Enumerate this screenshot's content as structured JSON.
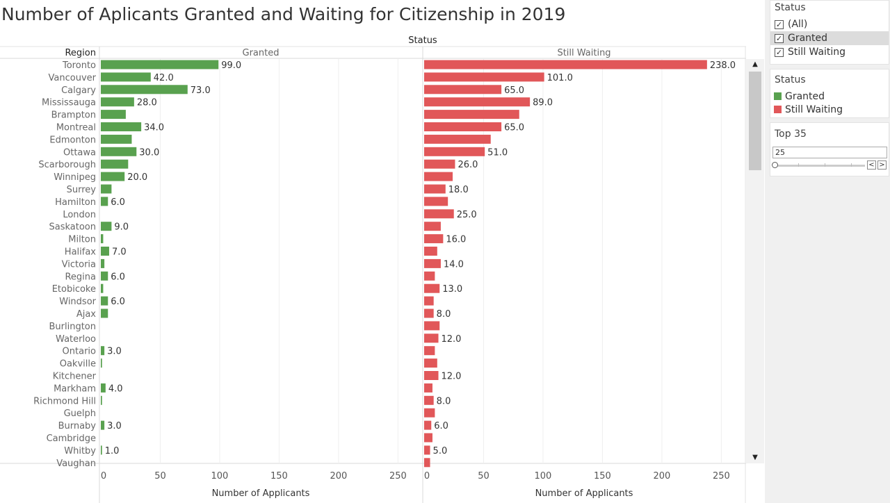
{
  "title": "Number of Aplicants Granted and  Waiting for Citizenship in 2019",
  "chart_data": {
    "type": "bar",
    "orientation": "horizontal",
    "title": "Number of Aplicants Granted and  Waiting for Citizenship in 2019",
    "column_header": "Status",
    "row_header": "Region",
    "xlabel": "Number of Applicants",
    "xlim": [
      0,
      265
    ],
    "xticks": [
      0,
      50,
      100,
      150,
      200,
      250
    ],
    "grid": true,
    "categories": [
      "Toronto",
      "Vancouver",
      "Calgary",
      "Mississauga",
      "Brampton",
      "Montreal",
      "Edmonton",
      "Ottawa",
      "Scarborough",
      "Winnipeg",
      "Surrey",
      "Hamilton",
      "London",
      "Saskatoon",
      "Milton",
      "Halifax",
      "Victoria",
      "Regina",
      "Etobicoke",
      "Windsor",
      "Ajax",
      "Burlington",
      "Waterloo",
      "Ontario",
      "Oakville",
      "Kitchener",
      "Markham",
      "Richmond Hill",
      "Guelph",
      "Burnaby",
      "Cambridge",
      "Whitby",
      "Vaughan"
    ],
    "series": [
      {
        "name": "Granted",
        "color": "#59a14f",
        "values": [
          99,
          42,
          73,
          28,
          21,
          34,
          26,
          30,
          23,
          20,
          9,
          6,
          0,
          9,
          2,
          7,
          3,
          6,
          2,
          6,
          6,
          0,
          0,
          3,
          1,
          0,
          4,
          1,
          0,
          3,
          0,
          1,
          0
        ],
        "labels": [
          "99.0",
          "42.0",
          "73.0",
          "28.0",
          "",
          "34.0",
          "",
          "30.0",
          "",
          "20.0",
          "",
          "6.0",
          "",
          "9.0",
          "",
          "7.0",
          "",
          "6.0",
          "",
          "6.0",
          "",
          "",
          "",
          "3.0",
          "",
          "",
          "4.0",
          "",
          "",
          "3.0",
          "",
          "1.0",
          ""
        ]
      },
      {
        "name": "Still Waiting",
        "color": "#e15759",
        "values": [
          238,
          101,
          65,
          89,
          80,
          65,
          56,
          51,
          26,
          24,
          18,
          20,
          25,
          14,
          16,
          11,
          14,
          9,
          13,
          8,
          8,
          13,
          12,
          9,
          11,
          12,
          7,
          8,
          9,
          6,
          7,
          5,
          5
        ],
        "labels": [
          "238.0",
          "101.0",
          "65.0",
          "89.0",
          "",
          "65.0",
          "",
          "51.0",
          "26.0",
          "",
          "18.0",
          "",
          "25.0",
          "",
          "16.0",
          "",
          "14.0",
          "",
          "13.0",
          "",
          "8.0",
          "",
          "12.0",
          "",
          "",
          "12.0",
          "",
          "8.0",
          "",
          "6.0",
          "",
          "5.0",
          ""
        ]
      }
    ]
  },
  "filter": {
    "title": "Status",
    "items": [
      {
        "label": "(All)",
        "check": "✓"
      },
      {
        "label": "Granted",
        "check": "✓"
      },
      {
        "label": "Still Waiting",
        "check": "✓"
      }
    ]
  },
  "legend": {
    "title": "Status",
    "items": [
      {
        "label": "Granted",
        "color": "#59a14f"
      },
      {
        "label": "Still Waiting",
        "color": "#e15759"
      }
    ]
  },
  "parameter": {
    "title": "Top 35",
    "value": "25",
    "prev_icon": "chevron-left-icon",
    "next_icon": "chevron-right-icon"
  },
  "scrollbar": {
    "up_icon": "chevron-up-icon",
    "down_icon": "chevron-down-icon"
  }
}
